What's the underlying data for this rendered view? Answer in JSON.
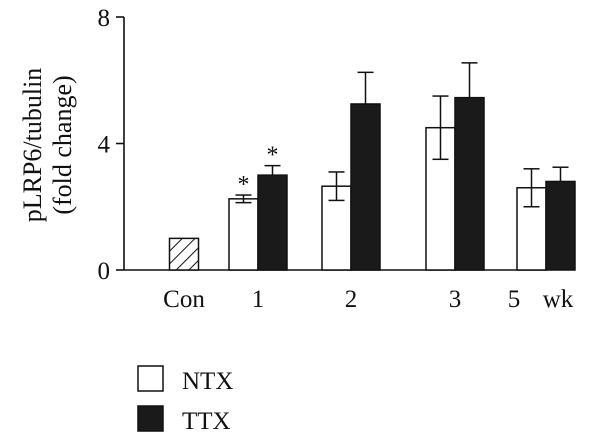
{
  "chart_data": {
    "type": "bar",
    "ylabel_line1": "pLRP6/tubulin",
    "ylabel_line2": "(fold change)",
    "x_unit": "wk",
    "ylim": [
      0,
      8
    ],
    "yticks": [
      {
        "value": 0,
        "label": "0"
      },
      {
        "value": 4,
        "label": "4"
      },
      {
        "value": 8,
        "label": "8"
      }
    ],
    "control": {
      "label": "Con",
      "value": 1.0
    },
    "categories": [
      "1",
      "2",
      "3",
      "5"
    ],
    "series": [
      {
        "name": "NTX",
        "color": "#ffffff",
        "values": [
          2.25,
          2.65,
          4.5,
          2.6
        ],
        "errors": [
          0.12,
          0.45,
          1.0,
          0.6
        ],
        "significance": [
          "*",
          "",
          "",
          ""
        ]
      },
      {
        "name": "TTX",
        "color": "#1a1a1a",
        "values": [
          3.0,
          5.25,
          5.45,
          2.8
        ],
        "errors": [
          0.3,
          1.0,
          1.1,
          0.45
        ],
        "significance": [
          "*",
          "",
          "",
          ""
        ]
      }
    ],
    "legend": [
      {
        "name": "NTX",
        "color": "#ffffff"
      },
      {
        "name": "TTX",
        "color": "#1a1a1a"
      }
    ],
    "legend_position": "bottom-left",
    "grid": false
  }
}
